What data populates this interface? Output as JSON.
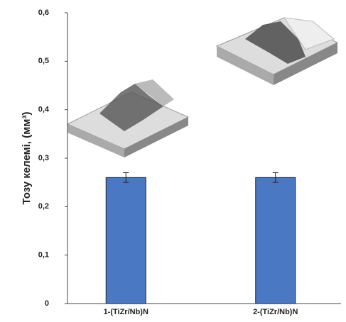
{
  "chart_data": {
    "type": "bar",
    "y_label": "Тозу келемі, (мм³)",
    "categories": [
      "1-(TiZr/Nb)N",
      "2-(TiZr/Nb)N"
    ],
    "values": [
      0.26,
      0.26
    ],
    "errors": [
      0.01,
      0.01
    ],
    "color": "#4a78c2",
    "ylim": [
      0,
      0.6
    ],
    "yticks": [
      0,
      {
        "value": 0.1,
        "label": "0,1"
      },
      {
        "value": 0.2,
        "label": "0,2"
      },
      {
        "value": 0.3,
        "label": "0,3"
      },
      {
        "value": 0.4,
        "label": "0,4"
      },
      {
        "value": 0.5,
        "label": "0,5"
      },
      {
        "value": 0.6,
        "label": "0,6"
      }
    ],
    "grid": false
  }
}
